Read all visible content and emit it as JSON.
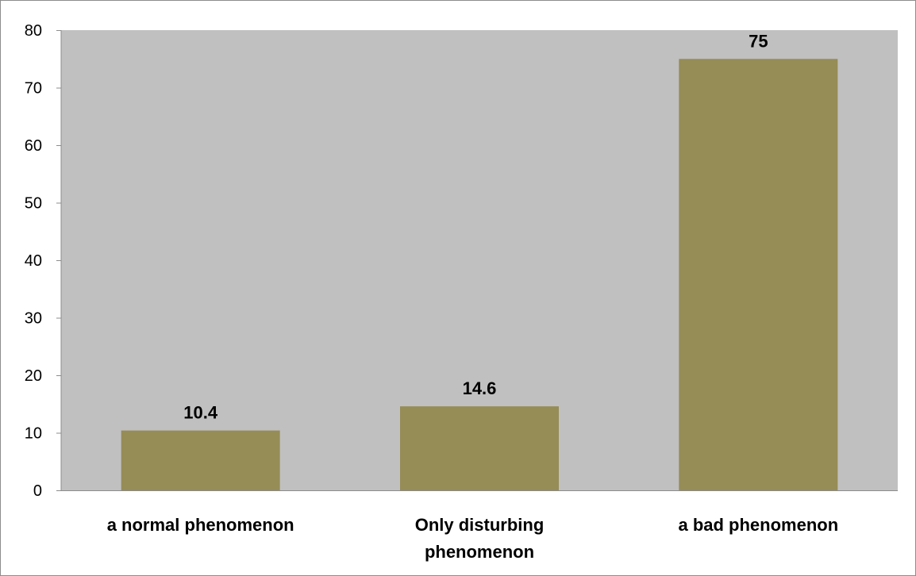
{
  "chart_data": {
    "type": "bar",
    "categories": [
      [
        "a normal phenomenon"
      ],
      [
        "Only disturbing",
        "phenomenon"
      ],
      [
        "a bad phenomenon"
      ]
    ],
    "values": [
      10.4,
      14.6,
      75
    ],
    "data_labels": [
      "10.4",
      "14.6",
      "75"
    ],
    "y_ticks": [
      0,
      10,
      20,
      30,
      40,
      50,
      60,
      70,
      80
    ],
    "ylim": [
      0,
      80
    ],
    "grid": false,
    "legend": "none",
    "title": "",
    "xlabel": "",
    "ylabel": "",
    "colors": {
      "bar": "#968c56",
      "plot_background": "#c0c0c0",
      "axis": "#8c8c8c",
      "text": "#000000"
    }
  }
}
